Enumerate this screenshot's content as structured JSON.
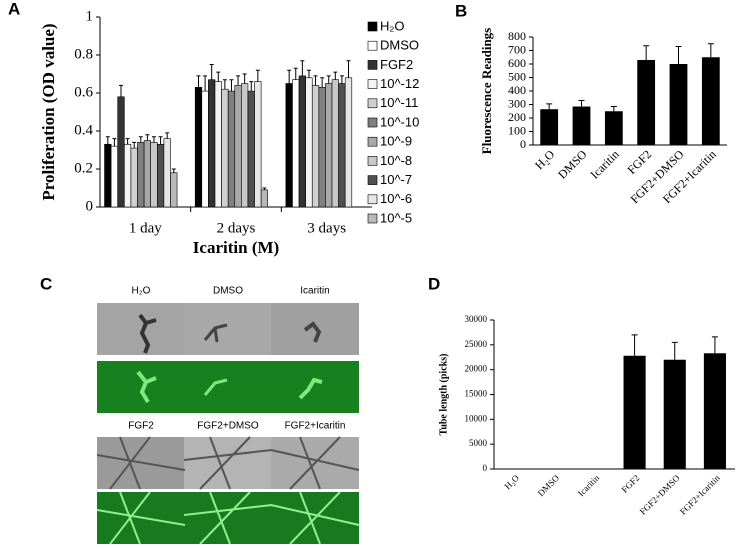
{
  "panels": [
    "A",
    "B",
    "C",
    "D"
  ],
  "image_panel": {
    "labels": [
      "H₂O",
      "DMSO",
      "Icaritin",
      "FGF2",
      "FGF2+DMSO",
      "FGF2+Icaritin"
    ]
  },
  "chart_data": [
    {
      "type": "grouped_bar",
      "xlabel": "Icaritin (M)",
      "ylabel": "Proliferation (OD value)",
      "categories": [
        "1 day",
        "2 days",
        "3 days"
      ],
      "ylim": [
        0,
        1
      ],
      "yticks": [
        0,
        0.2,
        0.4,
        0.6,
        0.8,
        1
      ],
      "series": [
        {
          "name": "H₂O",
          "color": "#000000",
          "values": [
            0.33,
            0.63,
            0.65
          ],
          "errors": [
            0.04,
            0.06,
            0.07
          ]
        },
        {
          "name": "DMSO",
          "color": "#ffffff",
          "values": [
            0.32,
            0.61,
            0.67
          ],
          "errors": [
            0.04,
            0.08,
            0.06
          ]
        },
        {
          "name": "FGF2",
          "color": "#333333",
          "values": [
            0.58,
            0.67,
            0.69
          ],
          "errors": [
            0.06,
            0.08,
            0.08
          ]
        },
        {
          "name": "10^-12",
          "color": "#f4f4f4",
          "values": [
            0.33,
            0.66,
            0.68
          ],
          "errors": [
            0.03,
            0.05,
            0.04
          ]
        },
        {
          "name": "10^-11",
          "color": "#d0d0d0",
          "values": [
            0.31,
            0.62,
            0.64
          ],
          "errors": [
            0.03,
            0.05,
            0.05
          ]
        },
        {
          "name": "10^-10",
          "color": "#808080",
          "values": [
            0.34,
            0.61,
            0.63
          ],
          "errors": [
            0.03,
            0.06,
            0.05
          ]
        },
        {
          "name": "10^-9",
          "color": "#a8a8a8",
          "values": [
            0.35,
            0.64,
            0.65
          ],
          "errors": [
            0.03,
            0.05,
            0.04
          ]
        },
        {
          "name": "10^-8",
          "color": "#c8c8c8",
          "values": [
            0.34,
            0.65,
            0.67
          ],
          "errors": [
            0.03,
            0.05,
            0.04
          ]
        },
        {
          "name": "10^-7",
          "color": "#505050",
          "values": [
            0.33,
            0.61,
            0.65
          ],
          "errors": [
            0.04,
            0.05,
            0.04
          ]
        },
        {
          "name": "10^-6",
          "color": "#e6e6e6",
          "values": [
            0.36,
            0.66,
            0.68
          ],
          "errors": [
            0.03,
            0.06,
            0.09
          ]
        },
        {
          "name": "10^-5",
          "color": "#b8b8b8",
          "values": [
            0.18,
            0.09,
            0
          ],
          "errors": [
            0.02,
            0.01,
            0
          ]
        }
      ]
    },
    {
      "type": "bar",
      "ylabel": "Fluorescence Readings",
      "categories": [
        "H₂O",
        "DMSO",
        "Icaritin",
        "FGF2",
        "FGF2+DMSO",
        "FGF2+Icaritin"
      ],
      "values": [
        265,
        285,
        250,
        630,
        600,
        650
      ],
      "errors": [
        40,
        45,
        35,
        105,
        130,
        100
      ],
      "color": "#000000",
      "ylim": [
        0,
        800
      ],
      "yticks": [
        0,
        100,
        200,
        300,
        400,
        500,
        600,
        700,
        800
      ]
    },
    {
      "type": "bar",
      "ylabel": "Tube length (picks)",
      "categories": [
        "H₂O",
        "DMSO",
        "Icaritin",
        "FGF2",
        "FGF2+DMSO",
        "FGF2+Icaritin"
      ],
      "values": [
        0,
        0,
        0,
        22800,
        22000,
        23300
      ],
      "errors": [
        0,
        0,
        0,
        4200,
        3500,
        3300
      ],
      "color": "#000000",
      "ylim": [
        0,
        30000
      ],
      "yticks": [
        0,
        5000,
        10000,
        15000,
        20000,
        25000,
        30000
      ]
    }
  ]
}
